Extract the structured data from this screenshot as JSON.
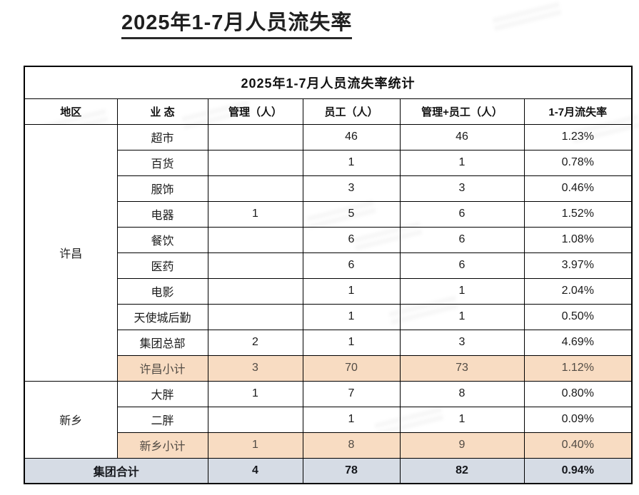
{
  "page_title": "2025年1-7月人员流失率",
  "table": {
    "title": "2025年1-7月人员流失率统计",
    "columns": [
      "地区",
      "业 态",
      "管理（人）",
      "员工（人）",
      "管理+员工（人）",
      "1-7月流失率"
    ],
    "regions": [
      {
        "name": "许昌",
        "rows": [
          {
            "business": "超市",
            "mgmt": "",
            "staff": "46",
            "total": "46",
            "rate": "1.23%"
          },
          {
            "business": "百货",
            "mgmt": "",
            "staff": "1",
            "total": "1",
            "rate": "0.78%"
          },
          {
            "business": "服饰",
            "mgmt": "",
            "staff": "3",
            "total": "3",
            "rate": "0.46%"
          },
          {
            "business": "电器",
            "mgmt": "1",
            "staff": "5",
            "total": "6",
            "rate": "1.52%"
          },
          {
            "business": "餐饮",
            "mgmt": "",
            "staff": "6",
            "total": "6",
            "rate": "1.08%"
          },
          {
            "business": "医药",
            "mgmt": "",
            "staff": "6",
            "total": "6",
            "rate": "3.97%"
          },
          {
            "business": "电影",
            "mgmt": "",
            "staff": "1",
            "total": "1",
            "rate": "2.04%"
          },
          {
            "business": "天使城后勤",
            "mgmt": "",
            "staff": "1",
            "total": "1",
            "rate": "0.50%"
          },
          {
            "business": "集团总部",
            "mgmt": "2",
            "staff": "1",
            "total": "3",
            "rate": "4.69%"
          }
        ],
        "subtotal": {
          "business": "许昌小计",
          "mgmt": "3",
          "staff": "70",
          "total": "73",
          "rate": "1.12%"
        }
      },
      {
        "name": "新乡",
        "rows": [
          {
            "business": "大胖",
            "mgmt": "1",
            "staff": "7",
            "total": "8",
            "rate": "0.80%"
          },
          {
            "business": "二胖",
            "mgmt": "",
            "staff": "1",
            "total": "1",
            "rate": "0.09%"
          }
        ],
        "subtotal": {
          "business": "新乡小计",
          "mgmt": "1",
          "staff": "8",
          "total": "9",
          "rate": "0.40%"
        }
      }
    ],
    "grand_total": {
      "label": "集团合计",
      "mgmt": "4",
      "staff": "78",
      "total": "82",
      "rate": "0.94%"
    }
  },
  "colors": {
    "subtotal_bg": "#F8DCC2",
    "grand_total_bg": "#D6DCE5",
    "border": "#000000",
    "title_text": "#1F1F1F"
  }
}
